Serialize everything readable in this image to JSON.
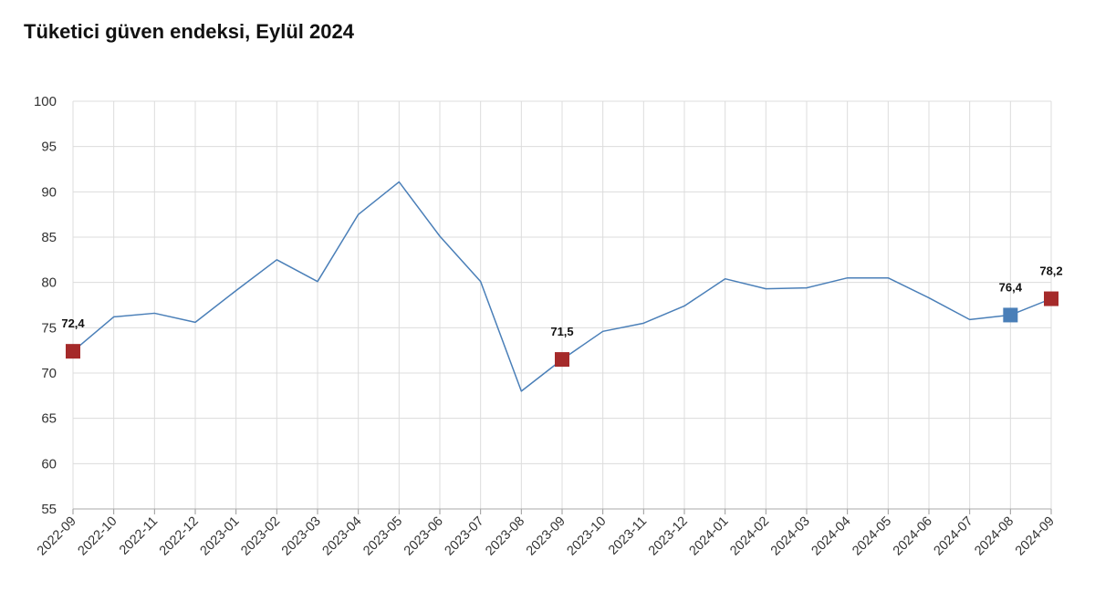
{
  "chart_data": {
    "type": "line",
    "title": "Tüketici güven endeksi, Eylül 2024",
    "xlabel": "",
    "ylabel": "",
    "ylim": [
      55,
      100
    ],
    "yticks": [
      55,
      60,
      65,
      70,
      75,
      80,
      85,
      90,
      95,
      100
    ],
    "grid": true,
    "legend": "none",
    "line_color": "#4a7fb8",
    "categories": [
      "2022-09",
      "2022-10",
      "2022-11",
      "2022-12",
      "2023-01",
      "2023-02",
      "2023-03",
      "2023-04",
      "2023-05",
      "2023-06",
      "2023-07",
      "2023-08",
      "2023-09",
      "2023-10",
      "2023-11",
      "2023-12",
      "2024-01",
      "2024-02",
      "2024-03",
      "2024-04",
      "2024-05",
      "2024-06",
      "2024-07",
      "2024-08",
      "2024-09"
    ],
    "series": [
      {
        "values": [
          72.4,
          76.2,
          76.6,
          75.6,
          79.1,
          82.5,
          80.1,
          87.5,
          91.1,
          85.1,
          80.1,
          68.0,
          71.5,
          74.6,
          75.5,
          77.4,
          80.4,
          79.3,
          79.4,
          80.5,
          80.5,
          78.3,
          75.9,
          76.4,
          78.2
        ]
      }
    ],
    "highlights": [
      {
        "category": "2022-09",
        "label": "72,4",
        "color": "#a52a2a"
      },
      {
        "category": "2023-09",
        "label": "71,5",
        "color": "#a52a2a"
      },
      {
        "category": "2024-08",
        "label": "76,4",
        "color": "#4a7fb8"
      },
      {
        "category": "2024-09",
        "label": "78,2",
        "color": "#a52a2a"
      }
    ]
  }
}
